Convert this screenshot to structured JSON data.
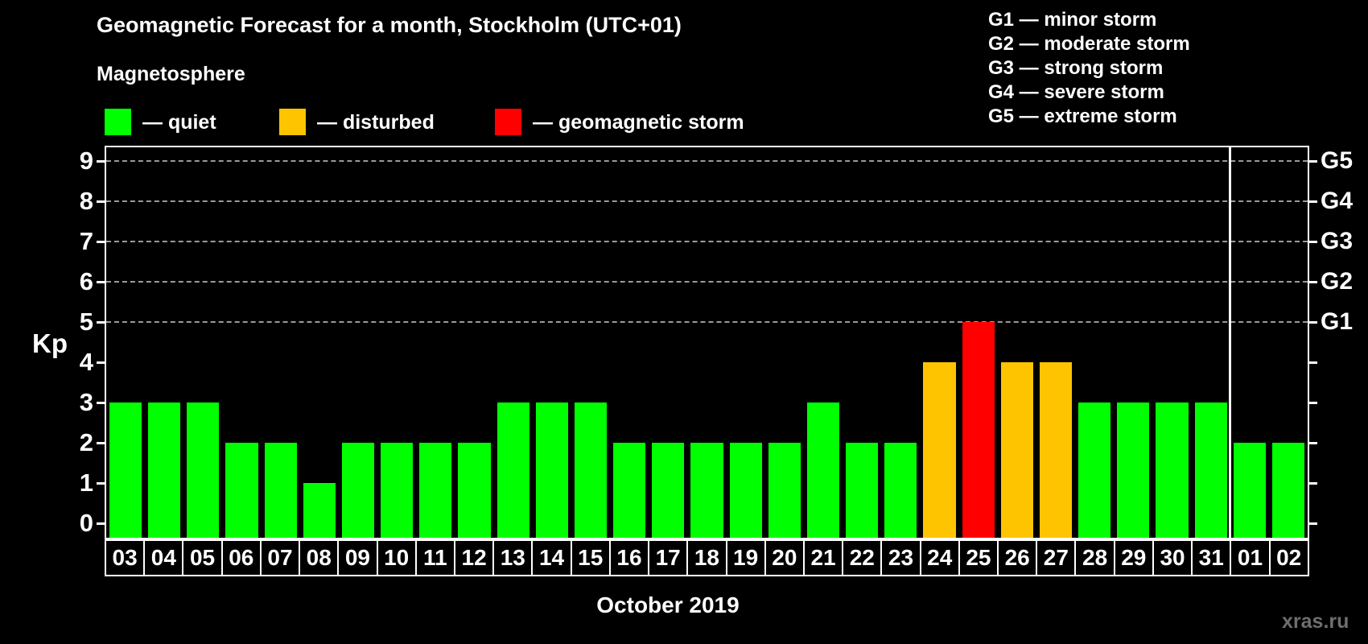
{
  "title": "Geomagnetic Forecast for a month, Stockholm (UTC+01)",
  "subtitle": "Magnetosphere",
  "legend": {
    "items": [
      {
        "label": "— quiet",
        "status": "quiet"
      },
      {
        "label": "— disturbed",
        "status": "disturbed"
      },
      {
        "label": "— geomagnetic storm",
        "status": "storm"
      }
    ]
  },
  "g_legend": [
    "G1 — minor storm",
    "G2 — moderate storm",
    "G3 — strong storm",
    "G4 — severe storm",
    "G5 — extreme storm"
  ],
  "watermark": "xras.ru",
  "chart_data": {
    "type": "bar",
    "title": "Geomagnetic Forecast for a month, Stockholm (UTC+01)",
    "xlabel": "October 2019",
    "ylabel": "Kp",
    "ylim": [
      0,
      9
    ],
    "yticks": [
      0,
      1,
      2,
      3,
      4,
      5,
      6,
      7,
      8,
      9
    ],
    "gridlines_at": [
      5,
      6,
      7,
      8,
      9
    ],
    "grid": "dashed horizontal at storm levels only",
    "legend_position": "top",
    "categories": [
      "03",
      "04",
      "05",
      "06",
      "07",
      "08",
      "09",
      "10",
      "11",
      "12",
      "13",
      "14",
      "15",
      "16",
      "17",
      "18",
      "19",
      "20",
      "21",
      "22",
      "23",
      "24",
      "25",
      "26",
      "27",
      "28",
      "29",
      "30",
      "31",
      "01",
      "02"
    ],
    "values": [
      3,
      3,
      3,
      2,
      2,
      1,
      2,
      2,
      2,
      2,
      3,
      3,
      3,
      2,
      2,
      2,
      2,
      2,
      3,
      2,
      2,
      4,
      5,
      4,
      4,
      3,
      3,
      3,
      3,
      2,
      2
    ],
    "statuses": [
      "quiet",
      "quiet",
      "quiet",
      "quiet",
      "quiet",
      "quiet",
      "quiet",
      "quiet",
      "quiet",
      "quiet",
      "quiet",
      "quiet",
      "quiet",
      "quiet",
      "quiet",
      "quiet",
      "quiet",
      "quiet",
      "quiet",
      "quiet",
      "quiet",
      "disturbed",
      "storm",
      "disturbed",
      "disturbed",
      "quiet",
      "quiet",
      "quiet",
      "quiet",
      "quiet",
      "quiet"
    ],
    "status_colors": {
      "quiet": "#00FF00",
      "disturbed": "#FFC400",
      "storm": "#FF0000"
    },
    "month_boundary_slot": 29,
    "right_axis_labels": [
      {
        "kp": 5,
        "label": "G1"
      },
      {
        "kp": 6,
        "label": "G2"
      },
      {
        "kp": 7,
        "label": "G3"
      },
      {
        "kp": 8,
        "label": "G4"
      },
      {
        "kp": 9,
        "label": "G5"
      }
    ]
  }
}
